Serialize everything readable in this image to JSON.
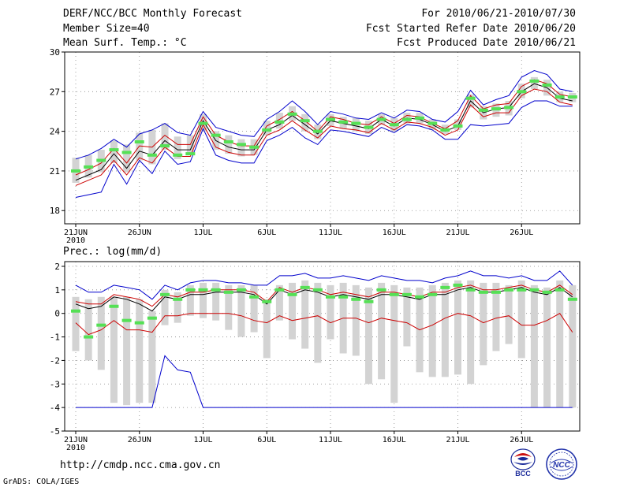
{
  "header": {
    "title": "DERF/NCC/BCC Monthly Forecast",
    "member_size": "Member Size=40",
    "variable": "Mean Surf. Temp.: °C",
    "period": "For 2010/06/21-2010/07/30",
    "start_date": "Fcst Started Refer Date 2010/06/20",
    "produced_date": "Fcst Produced Date 2010/06/21"
  },
  "footer": {
    "url": "http://cmdp.ncc.cma.gov.cn",
    "credit": "GrADS: COLA/IGES",
    "logo_bcc": "BCC",
    "logo_ncc": "NCC"
  },
  "colors": {
    "envelope": "#0000cc",
    "ensemble_mean": "#000000",
    "spread": "#cc0000",
    "box": "#d3d3d3",
    "member_mark": "#55e055",
    "grid": "#888888"
  },
  "chart_data": [
    {
      "type": "line",
      "title": "Mean Surf. Temp.: °C",
      "x": [
        "6/21",
        "6/22",
        "6/23",
        "6/24",
        "6/25",
        "6/26",
        "6/27",
        "6/28",
        "6/29",
        "6/30",
        "7/1",
        "7/2",
        "7/3",
        "7/4",
        "7/5",
        "7/6",
        "7/7",
        "7/8",
        "7/9",
        "7/10",
        "7/11",
        "7/12",
        "7/13",
        "7/14",
        "7/15",
        "7/16",
        "7/17",
        "7/18",
        "7/19",
        "7/20",
        "7/21",
        "7/22",
        "7/23",
        "7/24",
        "7/25",
        "7/26",
        "7/27",
        "7/28",
        "7/29",
        "7/30"
      ],
      "xticks": [
        {
          "index": 0,
          "label": "21JUN",
          "sublabel": "2010"
        },
        {
          "index": 5,
          "label": "26JUN"
        },
        {
          "index": 10,
          "label": "1JUL"
        },
        {
          "index": 15,
          "label": "6JUL"
        },
        {
          "index": 20,
          "label": "11JUL"
        },
        {
          "index": 25,
          "label": "16JUL"
        },
        {
          "index": 30,
          "label": "21JUL"
        },
        {
          "index": 35,
          "label": "26JUL"
        }
      ],
      "ylim": [
        17,
        30
      ],
      "yticks": [
        18,
        21,
        24,
        27,
        30
      ],
      "grid": true,
      "series": [
        {
          "name": "max",
          "values": [
            19.0,
            19.2,
            19.4,
            21.5,
            20.0,
            21.8,
            20.8,
            22.5,
            21.5,
            21.7,
            24.2,
            22.2,
            21.8,
            21.6,
            21.6,
            23.3,
            23.7,
            24.3,
            23.5,
            23.0,
            24.1,
            24.0,
            23.8,
            23.6,
            24.3,
            23.9,
            24.5,
            24.4,
            24.1,
            23.4,
            23.4,
            24.5,
            24.4,
            24.5,
            24.6,
            25.8,
            26.3,
            26.3,
            25.9,
            25.9
          ]
        },
        {
          "name": "max",
          "values": [
            21.9,
            22.2,
            22.7,
            23.4,
            22.8,
            23.8,
            24.1,
            24.6,
            23.9,
            23.7,
            25.5,
            24.3,
            24.0,
            23.7,
            23.6,
            24.9,
            25.5,
            26.3,
            25.5,
            24.5,
            25.5,
            25.3,
            25.0,
            24.9,
            25.4,
            25.0,
            25.6,
            25.5,
            24.9,
            24.7,
            25.5,
            27.1,
            26.0,
            26.4,
            26.7,
            28.1,
            28.6,
            28.3,
            27.2,
            27.0
          ]
        },
        {
          "name": "mean",
          "values": [
            20.3,
            20.7,
            21.1,
            22.3,
            21.2,
            22.5,
            22.2,
            23.3,
            22.6,
            22.6,
            24.8,
            23.3,
            22.8,
            22.6,
            22.6,
            24.1,
            24.5,
            25.2,
            24.5,
            23.8,
            24.8,
            24.6,
            24.4,
            24.2,
            24.9,
            24.4,
            25.0,
            24.9,
            24.5,
            24.0,
            24.4,
            26.3,
            25.4,
            25.7,
            25.8,
            27.0,
            27.6,
            27.3,
            26.5,
            26.3
          ]
        },
        {
          "name": "max",
          "values": [
            20.7,
            21.1,
            21.6,
            22.7,
            21.6,
            22.9,
            22.8,
            23.7,
            23.0,
            23.0,
            25.1,
            23.7,
            23.2,
            22.9,
            22.9,
            24.4,
            24.9,
            25.5,
            24.8,
            24.0,
            25.1,
            24.9,
            24.6,
            24.5,
            25.1,
            24.6,
            25.2,
            25.1,
            24.6,
            24.2,
            24.8,
            26.7,
            25.7,
            26.0,
            26.1,
            27.4,
            27.9,
            27.6,
            26.8,
            26.6
          ]
        },
        {
          "name": "max",
          "values": [
            19.9,
            20.3,
            20.7,
            21.8,
            20.7,
            22.0,
            21.6,
            22.8,
            22.1,
            22.1,
            24.5,
            22.8,
            22.4,
            22.2,
            22.2,
            23.7,
            24.1,
            24.8,
            24.1,
            23.5,
            24.4,
            24.2,
            24.1,
            23.9,
            24.6,
            24.1,
            24.7,
            24.6,
            24.3,
            23.7,
            24.1,
            26.0,
            25.1,
            25.4,
            25.4,
            26.7,
            27.2,
            27.0,
            26.2,
            26.0
          ]
        }
      ],
      "boxes": [
        {
          "low": 20.1,
          "high": 22.0,
          "mark": 21.0
        },
        {
          "low": 20.5,
          "high": 22.2,
          "mark": 21.3
        },
        {
          "low": 20.9,
          "high": 22.6,
          "mark": 21.8
        },
        {
          "low": 21.6,
          "high": 23.3,
          "mark": 22.6
        },
        {
          "low": 20.9,
          "high": 23.0,
          "mark": 22.4
        },
        {
          "low": 21.8,
          "high": 23.9,
          "mark": 23.2
        },
        {
          "low": 21.5,
          "high": 24.1,
          "mark": 22.2
        },
        {
          "low": 22.6,
          "high": 24.6,
          "mark": 22.9
        },
        {
          "low": 21.9,
          "high": 23.6,
          "mark": 22.2
        },
        {
          "low": 22.3,
          "high": 23.7,
          "mark": 22.3
        },
        {
          "low": 24.0,
          "high": 25.3,
          "mark": 24.6
        },
        {
          "low": 22.6,
          "high": 24.0,
          "mark": 23.7
        },
        {
          "low": 22.3,
          "high": 23.7,
          "mark": 23.2
        },
        {
          "low": 22.1,
          "high": 23.4,
          "mark": 23.0
        },
        {
          "low": 22.2,
          "high": 23.4,
          "mark": 22.8
        },
        {
          "low": 23.7,
          "high": 24.8,
          "mark": 24.1
        },
        {
          "low": 24.2,
          "high": 25.4,
          "mark": 24.7
        },
        {
          "low": 24.8,
          "high": 25.9,
          "mark": 25.3
        },
        {
          "low": 24.0,
          "high": 25.3,
          "mark": 24.8
        },
        {
          "low": 23.4,
          "high": 24.5,
          "mark": 24.0
        },
        {
          "low": 24.4,
          "high": 25.3,
          "mark": 24.9
        },
        {
          "low": 24.2,
          "high": 25.1,
          "mark": 24.7
        },
        {
          "low": 24.0,
          "high": 25.0,
          "mark": 24.6
        },
        {
          "low": 23.8,
          "high": 24.8,
          "mark": 24.3
        },
        {
          "low": 24.5,
          "high": 25.3,
          "mark": 24.9
        },
        {
          "low": 24.0,
          "high": 25.0,
          "mark": 24.5
        },
        {
          "low": 24.6,
          "high": 25.4,
          "mark": 24.9
        },
        {
          "low": 24.6,
          "high": 25.4,
          "mark": 25.0
        },
        {
          "low": 24.1,
          "high": 24.9,
          "mark": 24.6
        },
        {
          "low": 23.8,
          "high": 24.5,
          "mark": 24.1
        },
        {
          "low": 24.1,
          "high": 24.9,
          "mark": 24.4
        },
        {
          "low": 25.8,
          "high": 26.8,
          "mark": 26.5
        },
        {
          "low": 24.9,
          "high": 25.9,
          "mark": 25.6
        },
        {
          "low": 25.1,
          "high": 26.1,
          "mark": 25.7
        },
        {
          "low": 25.2,
          "high": 26.3,
          "mark": 25.8
        },
        {
          "low": 26.5,
          "high": 27.6,
          "mark": 27.0
        },
        {
          "low": 27.2,
          "high": 28.1,
          "mark": 27.8
        },
        {
          "low": 26.7,
          "high": 27.9,
          "mark": 27.5
        },
        {
          "low": 26.2,
          "high": 27.0,
          "mark": 26.6
        },
        {
          "low": 26.2,
          "high": 26.9,
          "mark": 26.6
        }
      ]
    },
    {
      "type": "line",
      "title": "Prec.: log(mm/d)",
      "x": [
        "6/21",
        "6/22",
        "6/23",
        "6/24",
        "6/25",
        "6/26",
        "6/27",
        "6/28",
        "6/29",
        "6/30",
        "7/1",
        "7/2",
        "7/3",
        "7/4",
        "7/5",
        "7/6",
        "7/7",
        "7/8",
        "7/9",
        "7/10",
        "7/11",
        "7/12",
        "7/13",
        "7/14",
        "7/15",
        "7/16",
        "7/17",
        "7/18",
        "7/19",
        "7/20",
        "7/21",
        "7/22",
        "7/23",
        "7/24",
        "7/25",
        "7/26",
        "7/27",
        "7/28",
        "7/29",
        "7/30"
      ],
      "xticks": [
        {
          "index": 0,
          "label": "21JUN",
          "sublabel": "2010"
        },
        {
          "index": 5,
          "label": "26JUN"
        },
        {
          "index": 10,
          "label": "1JUL"
        },
        {
          "index": 15,
          "label": "6JUL"
        },
        {
          "index": 20,
          "label": "11JUL"
        },
        {
          "index": 25,
          "label": "16JUL"
        },
        {
          "index": 30,
          "label": "21JUL"
        },
        {
          "index": 35,
          "label": "26JUL"
        }
      ],
      "ylim": [
        -5,
        2.2
      ],
      "yticks": [
        -5,
        -4,
        -3,
        -2,
        -1,
        0,
        1,
        2
      ],
      "grid": true,
      "series": [
        {
          "name": "max",
          "values": [
            1.2,
            0.9,
            0.9,
            1.2,
            1.1,
            1.0,
            0.6,
            1.2,
            1.0,
            1.3,
            1.4,
            1.4,
            1.3,
            1.3,
            1.2,
            1.2,
            1.6,
            1.6,
            1.7,
            1.5,
            1.5,
            1.6,
            1.5,
            1.4,
            1.6,
            1.5,
            1.4,
            1.4,
            1.3,
            1.5,
            1.6,
            1.8,
            1.6,
            1.6,
            1.5,
            1.6,
            1.4,
            1.4,
            1.8,
            1.2
          ]
        },
        {
          "name": "mean",
          "values": [
            0.4,
            0.2,
            0.3,
            0.7,
            0.6,
            0.4,
            0.1,
            0.7,
            0.6,
            0.8,
            0.8,
            0.9,
            0.9,
            0.9,
            0.8,
            0.4,
            1.0,
            0.8,
            1.0,
            0.9,
            0.7,
            0.8,
            0.7,
            0.6,
            0.8,
            0.8,
            0.7,
            0.6,
            0.8,
            0.8,
            1.0,
            1.1,
            0.9,
            0.9,
            1.0,
            1.1,
            0.9,
            0.8,
            1.1,
            0.7
          ]
        },
        {
          "name": "max",
          "values": [
            0.5,
            0.4,
            0.4,
            0.8,
            0.7,
            0.6,
            0.3,
            0.8,
            0.7,
            0.9,
            0.9,
            1.0,
            1.0,
            1.0,
            0.9,
            0.5,
            1.1,
            0.9,
            1.1,
            1.0,
            0.8,
            0.9,
            0.8,
            0.7,
            0.9,
            0.9,
            0.8,
            0.7,
            0.9,
            0.9,
            1.1,
            1.2,
            1.0,
            1.0,
            1.1,
            1.2,
            1.0,
            0.9,
            1.2,
            0.8
          ]
        },
        {
          "name": "max",
          "values": [
            -0.4,
            -0.9,
            -0.7,
            -0.3,
            -0.7,
            -0.7,
            -0.8,
            -0.1,
            -0.1,
            0.0,
            0.0,
            0.0,
            0.0,
            -0.1,
            -0.3,
            -0.4,
            -0.1,
            -0.3,
            -0.2,
            -0.1,
            -0.4,
            -0.2,
            -0.2,
            -0.4,
            -0.2,
            -0.3,
            -0.4,
            -0.7,
            -0.5,
            -0.2,
            0.0,
            -0.1,
            -0.4,
            -0.2,
            -0.1,
            -0.5,
            -0.5,
            -0.3,
            0.0,
            -0.8
          ]
        },
        {
          "name": "min",
          "values": [
            -4.0,
            -4.0,
            -4.0,
            -4.0,
            -4.0,
            -4.0,
            -4.0,
            -1.8,
            -2.4,
            -2.5,
            -4.0,
            -4.0,
            -4.0,
            -4.0,
            -4.0,
            -4.0,
            -4.0,
            -4.0,
            -4.0,
            -4.0,
            -4.0,
            -4.0,
            -4.0,
            -4.0,
            -4.0,
            -4.0,
            -4.0,
            -4.0,
            -4.0,
            -4.0,
            -4.0,
            -4.0,
            -4.0,
            -4.0,
            -4.0,
            -4.0,
            -4.0,
            -4.0,
            -4.0,
            -4.0
          ]
        }
      ],
      "boxes": [
        {
          "low": -1.6,
          "high": 0.7,
          "mark": 0.1
        },
        {
          "low": -2.0,
          "high": 0.6,
          "mark": -1.0
        },
        {
          "low": -2.4,
          "high": 0.7,
          "mark": -0.5
        },
        {
          "low": -3.8,
          "high": 0.7,
          "mark": 0.3
        },
        {
          "low": -3.9,
          "high": 0.7,
          "mark": -0.3
        },
        {
          "low": -3.8,
          "high": 0.6,
          "mark": -0.4
        },
        {
          "low": -3.8,
          "high": 0.1,
          "mark": -0.2
        },
        {
          "low": -0.5,
          "high": 1.0,
          "mark": 0.8
        },
        {
          "low": -0.4,
          "high": 0.9,
          "mark": 0.6
        },
        {
          "low": -0.1,
          "high": 1.2,
          "mark": 1.0
        },
        {
          "low": -0.2,
          "high": 1.3,
          "mark": 1.0
        },
        {
          "low": -0.3,
          "high": 1.3,
          "mark": 1.0
        },
        {
          "low": -0.7,
          "high": 1.2,
          "mark": 0.9
        },
        {
          "low": -1.0,
          "high": 1.2,
          "mark": 1.0
        },
        {
          "low": -0.8,
          "high": 1.2,
          "mark": 0.7
        },
        {
          "low": -1.9,
          "high": 0.6,
          "mark": 0.5
        },
        {
          "low": -0.3,
          "high": 1.2,
          "mark": 1.0
        },
        {
          "low": -1.1,
          "high": 1.3,
          "mark": 0.8
        },
        {
          "low": -1.5,
          "high": 1.4,
          "mark": 1.1
        },
        {
          "low": -2.1,
          "high": 1.3,
          "mark": 1.0
        },
        {
          "low": -1.1,
          "high": 1.2,
          "mark": 0.7
        },
        {
          "low": -1.7,
          "high": 1.3,
          "mark": 0.7
        },
        {
          "low": -1.8,
          "high": 1.2,
          "mark": 0.6
        },
        {
          "low": -3.0,
          "high": 1.1,
          "mark": 0.5
        },
        {
          "low": -2.8,
          "high": 1.3,
          "mark": 1.0
        },
        {
          "low": -3.8,
          "high": 1.2,
          "mark": 0.8
        },
        {
          "low": -1.4,
          "high": 1.1,
          "mark": 0.8
        },
        {
          "low": -2.5,
          "high": 1.1,
          "mark": 0.7
        },
        {
          "low": -2.7,
          "high": 1.2,
          "mark": 0.8
        },
        {
          "low": -2.7,
          "high": 1.3,
          "mark": 1.1
        },
        {
          "low": -2.6,
          "high": 1.4,
          "mark": 1.2
        },
        {
          "low": -3.0,
          "high": 1.4,
          "mark": 1.0
        },
        {
          "low": -2.2,
          "high": 1.3,
          "mark": 0.9
        },
        {
          "low": -1.6,
          "high": 1.3,
          "mark": 0.9
        },
        {
          "low": -1.3,
          "high": 1.2,
          "mark": 1.0
        },
        {
          "low": -1.9,
          "high": 1.4,
          "mark": 1.0
        },
        {
          "low": -4.0,
          "high": 1.2,
          "mark": 1.0
        },
        {
          "low": -4.0,
          "high": 1.1,
          "mark": 0.9
        },
        {
          "low": -4.0,
          "high": 1.4,
          "mark": 1.0
        },
        {
          "low": -4.0,
          "high": 1.2,
          "mark": 0.6
        }
      ]
    }
  ]
}
